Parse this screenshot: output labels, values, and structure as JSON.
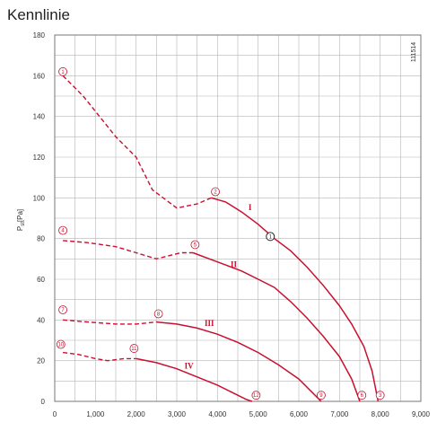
{
  "page": {
    "title": "Kennlinie"
  },
  "colors": {
    "curve": "#c8102e",
    "grid": "#b5b5b5",
    "frame": "#777777",
    "marker_black": "#222222"
  },
  "chart_data": {
    "type": "line",
    "title": "Kennlinie",
    "ylabel": "P_st [Pa]",
    "ylabel_main": "P",
    "ylabel_sub": "st",
    "ylabel_unit": "[Pa]",
    "xlabel": "",
    "code": "111514",
    "xlim": [
      0,
      9000
    ],
    "ylim": [
      0,
      180
    ],
    "x_ticks": [
      0,
      1000,
      2000,
      3000,
      4000,
      5000,
      6000,
      7000,
      8000,
      9000
    ],
    "x_tick_labels": [
      "0",
      "1,000",
      "2,000",
      "3,000",
      "4,000",
      "5,000",
      "6,000",
      "7,000",
      "8,000",
      "9,000"
    ],
    "y_ticks": [
      0,
      20,
      40,
      60,
      80,
      100,
      120,
      140,
      160,
      180
    ],
    "y_tick_labels": [
      "0",
      "20",
      "40",
      "60",
      "80",
      "100",
      "120",
      "140",
      "160",
      "180"
    ],
    "grid": true,
    "series": [
      {
        "label": "I",
        "dashed": [
          [
            200,
            160
          ],
          [
            700,
            150
          ],
          [
            1100,
            140
          ],
          [
            1500,
            130
          ],
          [
            2000,
            120
          ],
          [
            2400,
            104
          ],
          [
            3000,
            95
          ],
          [
            3500,
            97
          ],
          [
            3850,
            100
          ]
        ],
        "solid": [
          [
            3850,
            100
          ],
          [
            4200,
            98
          ],
          [
            4600,
            93
          ],
          [
            5000,
            87
          ],
          [
            5400,
            80
          ],
          [
            5800,
            74
          ],
          [
            6200,
            66
          ],
          [
            6600,
            57
          ],
          [
            7000,
            47
          ],
          [
            7300,
            38
          ],
          [
            7600,
            27
          ],
          [
            7800,
            15
          ],
          [
            7950,
            0
          ]
        ],
        "label_pos": [
          4800,
          94
        ],
        "markers": [
          {
            "num": "1",
            "x": 200,
            "y": 162
          },
          {
            "num": "2",
            "x": 3950,
            "y": 103
          },
          {
            "num": "3",
            "x": 8000,
            "y": 3
          }
        ]
      },
      {
        "label": "II",
        "dashed": [
          [
            200,
            79
          ],
          [
            800,
            78
          ],
          [
            1500,
            76
          ],
          [
            2000,
            73
          ],
          [
            2500,
            70
          ],
          [
            3100,
            73
          ],
          [
            3400,
            73
          ]
        ],
        "solid": [
          [
            3400,
            73
          ],
          [
            3800,
            70
          ],
          [
            4200,
            67
          ],
          [
            4600,
            64
          ],
          [
            5000,
            60
          ],
          [
            5400,
            56
          ],
          [
            5800,
            49
          ],
          [
            6200,
            41
          ],
          [
            6600,
            32
          ],
          [
            7000,
            22
          ],
          [
            7300,
            11
          ],
          [
            7500,
            0
          ]
        ],
        "label_pos": [
          4400,
          66
        ],
        "markers": [
          {
            "num": "4",
            "x": 200,
            "y": 84
          },
          {
            "num": "5",
            "x": 3450,
            "y": 77
          },
          {
            "num": "6",
            "x": 7550,
            "y": 3
          }
        ]
      },
      {
        "label": "III",
        "dashed": [
          [
            200,
            40
          ],
          [
            800,
            39
          ],
          [
            1500,
            38
          ],
          [
            2000,
            38
          ],
          [
            2500,
            39
          ]
        ],
        "solid": [
          [
            2500,
            39
          ],
          [
            3000,
            38
          ],
          [
            3500,
            36
          ],
          [
            4000,
            33
          ],
          [
            4500,
            29
          ],
          [
            5000,
            24
          ],
          [
            5500,
            18
          ],
          [
            6000,
            11
          ],
          [
            6400,
            3
          ],
          [
            6550,
            0
          ]
        ],
        "label_pos": [
          3800,
          37
        ],
        "markers": [
          {
            "num": "7",
            "x": 200,
            "y": 45
          },
          {
            "num": "8",
            "x": 2550,
            "y": 43
          },
          {
            "num": "9",
            "x": 6550,
            "y": 3
          }
        ]
      },
      {
        "label": "IV",
        "dashed": [
          [
            200,
            24
          ],
          [
            600,
            23
          ],
          [
            1000,
            21
          ],
          [
            1300,
            20
          ],
          [
            1700,
            21
          ],
          [
            2000,
            21
          ]
        ],
        "solid": [
          [
            2000,
            21
          ],
          [
            2500,
            19
          ],
          [
            3000,
            16
          ],
          [
            3500,
            12
          ],
          [
            4000,
            8
          ],
          [
            4400,
            4
          ],
          [
            4700,
            1
          ],
          [
            4850,
            0
          ]
        ],
        "label_pos": [
          3300,
          16
        ],
        "markers": [
          {
            "num": "10",
            "x": 150,
            "y": 28
          },
          {
            "num": "11",
            "x": 1950,
            "y": 26
          },
          {
            "num": "12",
            "x": 4950,
            "y": 3
          }
        ]
      }
    ],
    "operating_point": {
      "num": "1",
      "x": 5300,
      "y": 81
    }
  }
}
